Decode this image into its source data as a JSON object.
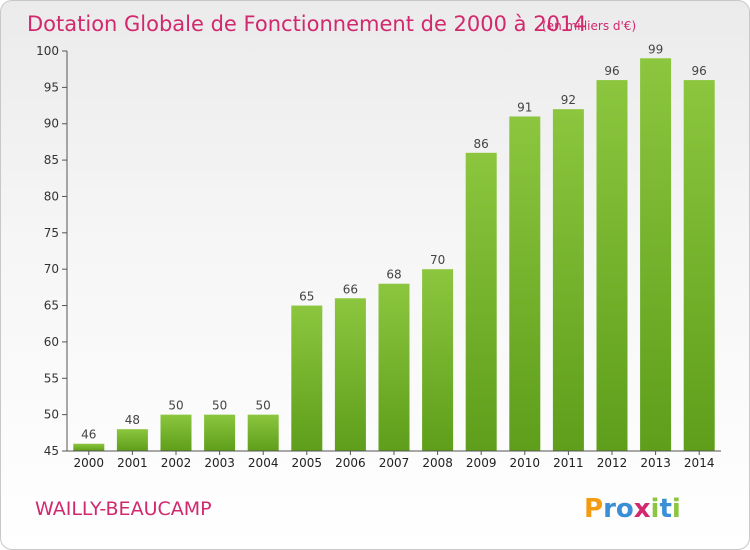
{
  "chart_data": {
    "type": "bar",
    "title": "Dotation Globale de Fonctionnement de 2000 à 2014",
    "subtitle": "(en milliers d'€)",
    "categories": [
      "2000",
      "2001",
      "2002",
      "2003",
      "2004",
      "2005",
      "2006",
      "2007",
      "2008",
      "2009",
      "2010",
      "2011",
      "2012",
      "2013",
      "2014"
    ],
    "values": [
      46,
      48,
      50,
      50,
      50,
      65,
      66,
      68,
      70,
      86,
      91,
      92,
      96,
      99,
      96
    ],
    "ylim": [
      45,
      100
    ],
    "yticks": [
      45,
      50,
      55,
      60,
      65,
      70,
      75,
      80,
      85,
      90,
      95,
      100
    ],
    "grid": false,
    "bar_color": "#8cc63f",
    "bar_color_dark": "#5e9e1a"
  },
  "footer": {
    "commune": "WAILLY-BEAUCAMP",
    "logo_letters": [
      "P",
      "r",
      "o",
      "x",
      "i",
      "t",
      "i"
    ],
    "logo_colors": [
      "#f39c12",
      "#3a8fd6",
      "#3a8fd6",
      "#d1286e",
      "#8cc63f",
      "#3a8fd6",
      "#8cc63f"
    ]
  }
}
